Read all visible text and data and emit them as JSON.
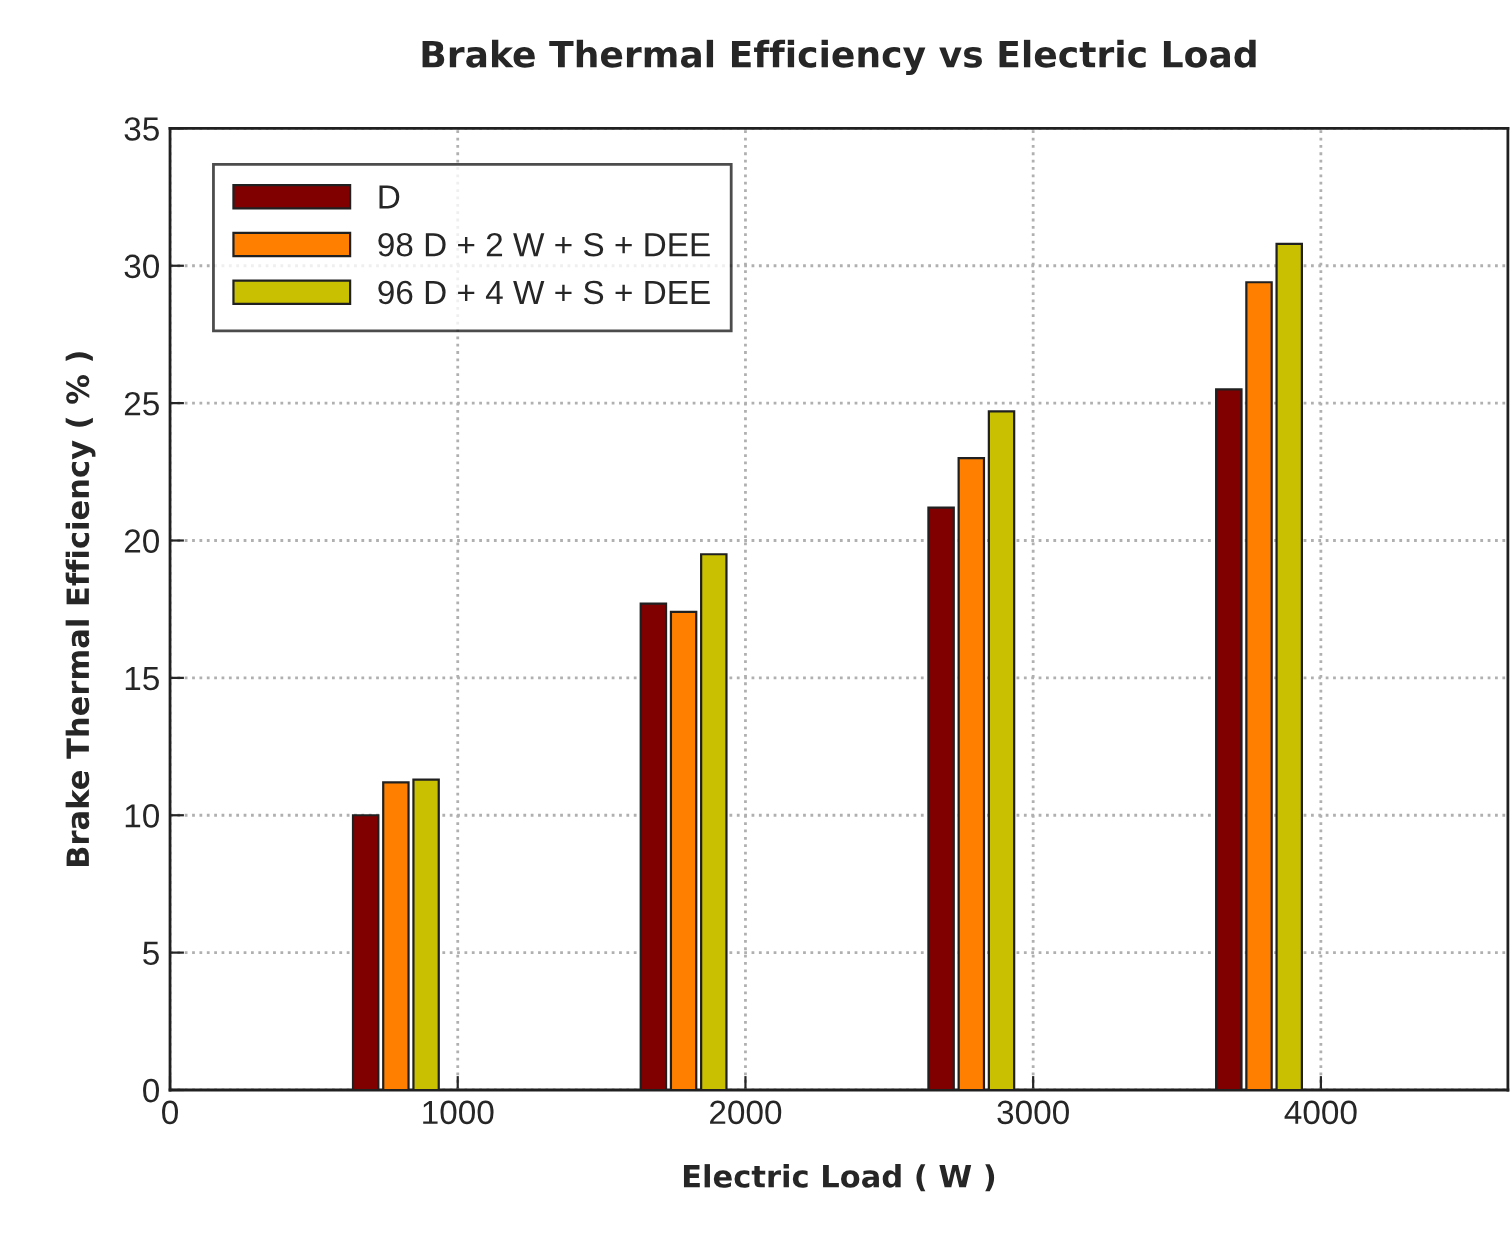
{
  "chart_data": {
    "type": "bar",
    "title": "Brake Thermal Efficiency vs Electric Load",
    "xlabel": "Electric Load ( W )",
    "ylabel": "Brake Thermal Efficiency ( % )",
    "series": [
      {
        "name": "D",
        "color": "#800000",
        "x": [
          680,
          1680,
          2680,
          3680
        ],
        "values": [
          10.0,
          17.7,
          21.2,
          25.5
        ]
      },
      {
        "name": "98 D + 2 W + S + DEE",
        "color": "#ff8000",
        "x": [
          785,
          1785,
          2785,
          3785
        ],
        "values": [
          11.2,
          17.4,
          23.0,
          29.4
        ]
      },
      {
        "name": "96 D + 4 W + S + DEE",
        "color": "#c8c000",
        "x": [
          890,
          1890,
          2890,
          3890
        ],
        "values": [
          11.3,
          19.5,
          24.7,
          30.8
        ]
      }
    ],
    "xlim": [
      0,
      4650
    ],
    "xticks": [
      0,
      1000,
      2000,
      3000,
      4000
    ],
    "ylim": [
      0,
      35
    ],
    "yticks": [
      0,
      5,
      10,
      15,
      20,
      25,
      30,
      35
    ],
    "grid": true,
    "legend": "top left"
  }
}
